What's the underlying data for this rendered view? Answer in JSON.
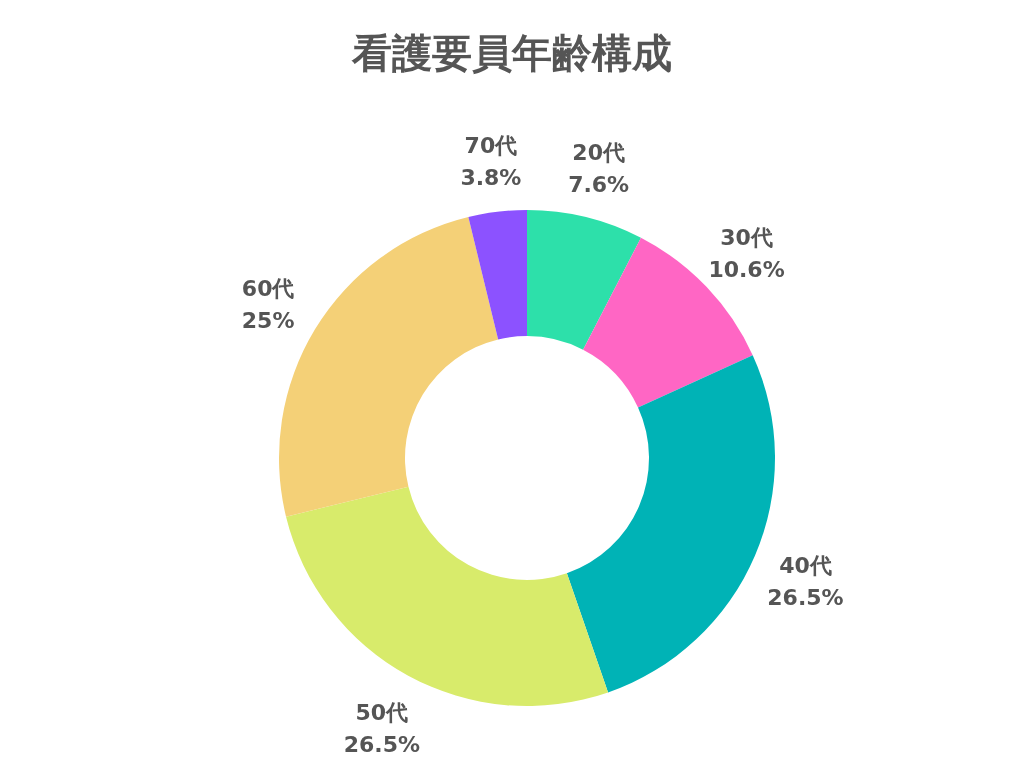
{
  "chart_data": {
    "type": "donut",
    "title": "看護要員年齢構成",
    "categories": [
      "20代",
      "30代",
      "40代",
      "50代",
      "60代",
      "70代"
    ],
    "values": [
      7.6,
      10.6,
      26.5,
      26.5,
      25,
      3.8
    ],
    "value_labels": [
      "7.6%",
      "10.6%",
      "26.5%",
      "26.5%",
      "25%",
      "3.8%"
    ],
    "colors": [
      "#2de0aa",
      "#ff66c4",
      "#00b3b6",
      "#d8eb6b",
      "#f4d077",
      "#8c52ff"
    ],
    "legend": false
  }
}
